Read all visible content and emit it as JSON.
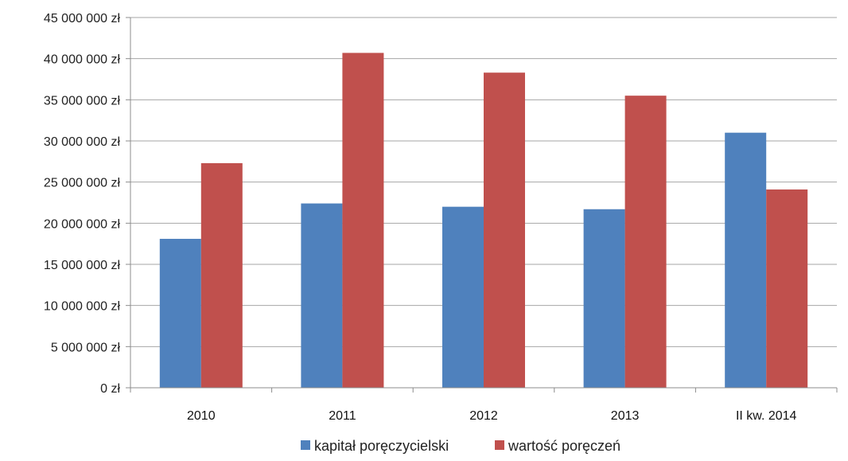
{
  "chart_data": {
    "type": "bar",
    "categories": [
      "2010",
      "2011",
      "2012",
      "2013",
      "II kw. 2014"
    ],
    "series": [
      {
        "name": "kapitał poręczycielski",
        "color": "#4F81BD",
        "values": [
          18100000,
          22400000,
          22000000,
          21700000,
          31000000
        ]
      },
      {
        "name": "wartość poręczeń",
        "color": "#C0504D",
        "values": [
          27300000,
          40700000,
          38300000,
          35500000,
          24100000
        ]
      }
    ],
    "ylim": [
      0,
      45000000
    ],
    "yticks": [
      {
        "value": 0,
        "label": "0 zł"
      },
      {
        "value": 5000000,
        "label": "5 000 000 zł"
      },
      {
        "value": 10000000,
        "label": "10 000 000 zł"
      },
      {
        "value": 15000000,
        "label": "15 000 000 zł"
      },
      {
        "value": 20000000,
        "label": "20 000 000 zł"
      },
      {
        "value": 25000000,
        "label": "25 000 000 zł"
      },
      {
        "value": 30000000,
        "label": "30 000 000 zł"
      },
      {
        "value": 35000000,
        "label": "35 000 000 zł"
      },
      {
        "value": 40000000,
        "label": "40 000 000 zł"
      },
      {
        "value": 45000000,
        "label": "45 000 000 zł"
      }
    ],
    "grid": true,
    "legend_position": "bottom",
    "title": "",
    "xlabel": "",
    "ylabel": ""
  }
}
